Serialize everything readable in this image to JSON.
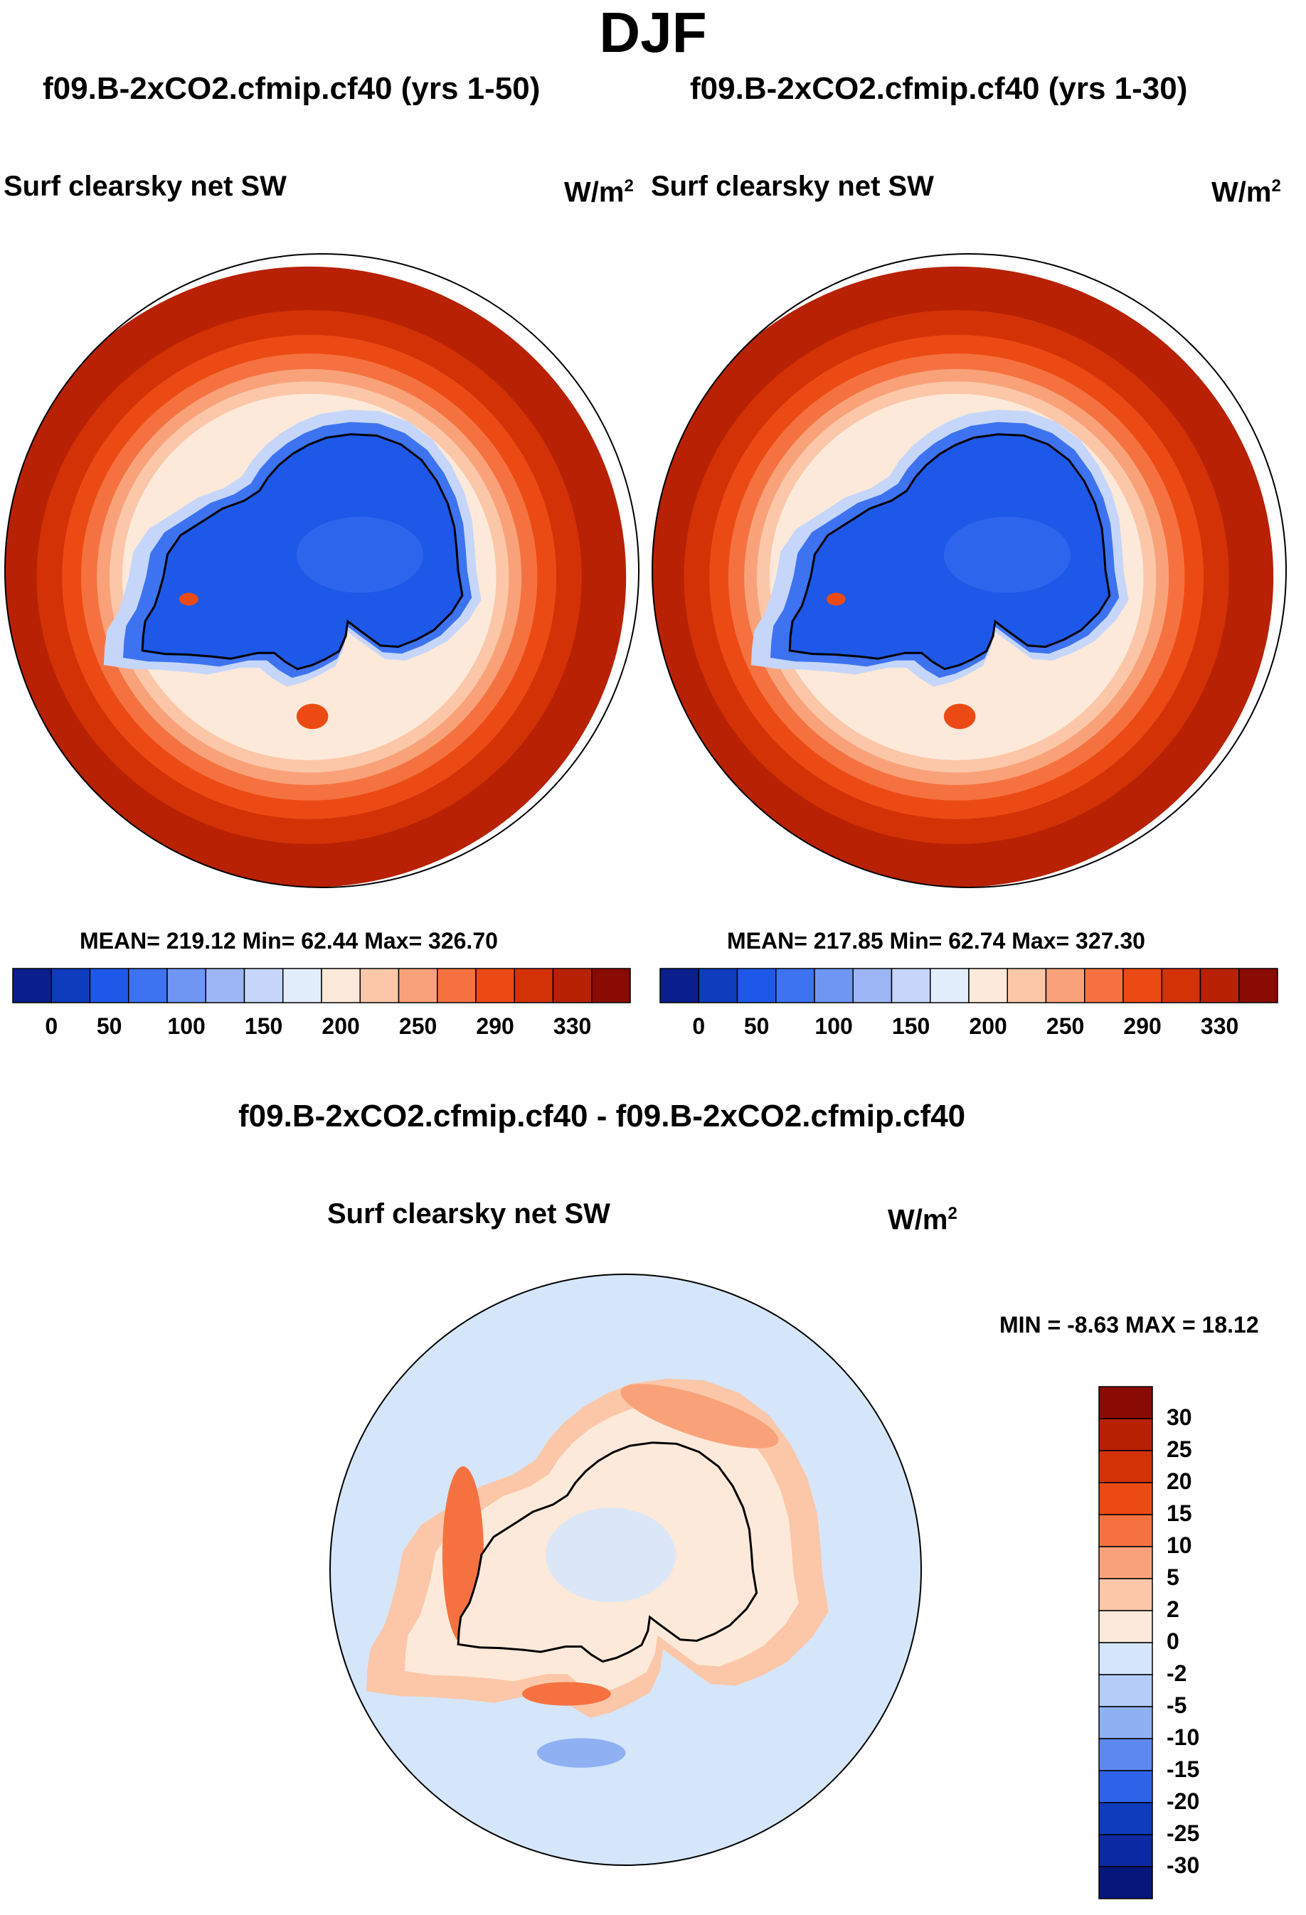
{
  "main_title": "DJF",
  "chart_data": [
    {
      "type": "heatmap",
      "projection": "south polar stereographic",
      "title": "f09.B-2xCO2.cfmip.cf40 (yrs 1-50)",
      "variable": "Surf clearsky net SW",
      "units": "W/m",
      "units_sup": "2",
      "stats": "MEAN= 219.12  Min=  62.44  Max= 326.70",
      "colorbar_ticks": [
        "0",
        "50",
        "100",
        "150",
        "200",
        "250",
        "290",
        "330"
      ],
      "colorbar_colors": [
        "#0a1e8c",
        "#0e3cbd",
        "#1d58e8",
        "#3d73f0",
        "#6f96f2",
        "#9cb6f5",
        "#c5d6fa",
        "#e3eefc",
        "#fde9d9",
        "#fbc7a8",
        "#f9a27a",
        "#f57240",
        "#ec4a14",
        "#d23206",
        "#b82104",
        "#8a0a04"
      ],
      "ocean_colors": [
        "#b82104",
        "#d23206",
        "#ec4a14",
        "#f57240",
        "#f9a27a",
        "#fbc7a8",
        "#fde9d9"
      ],
      "land_color": "#1d58e8",
      "land_ring_color": "#3d73f0"
    },
    {
      "type": "heatmap",
      "projection": "south polar stereographic",
      "title": "f09.B-2xCO2.cfmip.cf40 (yrs 1-30)",
      "variable": "Surf clearsky net SW",
      "units": "W/m",
      "units_sup": "2",
      "stats": "MEAN= 217.85  Min=  62.74  Max= 327.30",
      "colorbar_ticks": [
        "0",
        "50",
        "100",
        "150",
        "200",
        "250",
        "290",
        "330"
      ],
      "colorbar_colors": [
        "#0a1e8c",
        "#0e3cbd",
        "#1d58e8",
        "#3d73f0",
        "#6f96f2",
        "#9cb6f5",
        "#c5d6fa",
        "#e3eefc",
        "#fde9d9",
        "#fbc7a8",
        "#f9a27a",
        "#f57240",
        "#ec4a14",
        "#d23206",
        "#b82104",
        "#8a0a04"
      ],
      "ocean_colors": [
        "#b82104",
        "#d23206",
        "#ec4a14",
        "#f57240",
        "#f9a27a",
        "#fbc7a8",
        "#fde9d9"
      ],
      "land_color": "#1d58e8",
      "land_ring_color": "#3d73f0"
    },
    {
      "type": "heatmap",
      "projection": "south polar stereographic",
      "title": "f09.B-2xCO2.cfmip.cf40 - f09.B-2xCO2.cfmip.cf40",
      "variable": "Surf clearsky net SW",
      "units": "W/m",
      "units_sup": "2",
      "stats": "MIN =  -8.63 MAX =  18.12",
      "colorbar_ticks": [
        "30",
        "25",
        "20",
        "15",
        "10",
        "5",
        "2",
        "0",
        "-2",
        "-5",
        "-10",
        "-15",
        "-20",
        "-25",
        "-30"
      ],
      "colorbar_colors": [
        "#8a0a04",
        "#b82104",
        "#d23206",
        "#ec4a14",
        "#f57240",
        "#f9a27a",
        "#fbc7a8",
        "#fde9d9",
        "#d5e6fb",
        "#b4ccf7",
        "#8fb0f3",
        "#5d88ef",
        "#2e63e9",
        "#0e3cbd",
        "#0a2aa3",
        "#06167a"
      ],
      "background_color": "#d5e6fb",
      "anomaly_colors": [
        "#fbc7a8",
        "#f9a27a",
        "#f57240"
      ],
      "land_color": "#fde9d9"
    }
  ]
}
